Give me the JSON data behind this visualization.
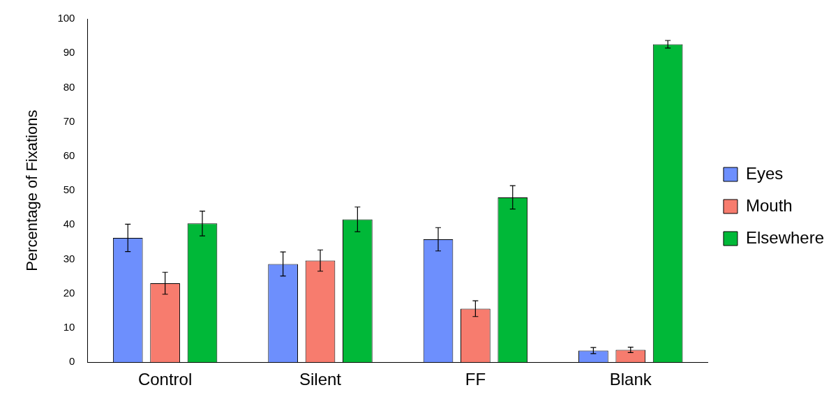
{
  "chart_data": {
    "type": "bar",
    "ylabel": "Percentage of Fixations",
    "categories": [
      "Control",
      "Silent",
      "FF",
      "Blank"
    ],
    "series": [
      {
        "name": "Eyes",
        "color": "#6d8ffd",
        "values": [
          36.2,
          28.6,
          35.8,
          3.4
        ],
        "errors": [
          4,
          3.5,
          3.4,
          0.9
        ]
      },
      {
        "name": "Mouth",
        "color": "#f77c6e",
        "values": [
          23,
          29.6,
          15.6,
          3.6
        ],
        "errors": [
          3.2,
          3.1,
          2.3,
          0.8
        ]
      },
      {
        "name": "Elsewhere",
        "color": "#00b838",
        "values": [
          40.4,
          41.6,
          48,
          92.6
        ],
        "errors": [
          3.6,
          3.6,
          3.4,
          1.1
        ]
      }
    ],
    "ylim": [
      0,
      100
    ],
    "yticks": [
      0,
      10,
      20,
      30,
      40,
      50,
      60,
      70,
      80,
      90,
      100
    ],
    "grid": false,
    "legend": "right"
  }
}
